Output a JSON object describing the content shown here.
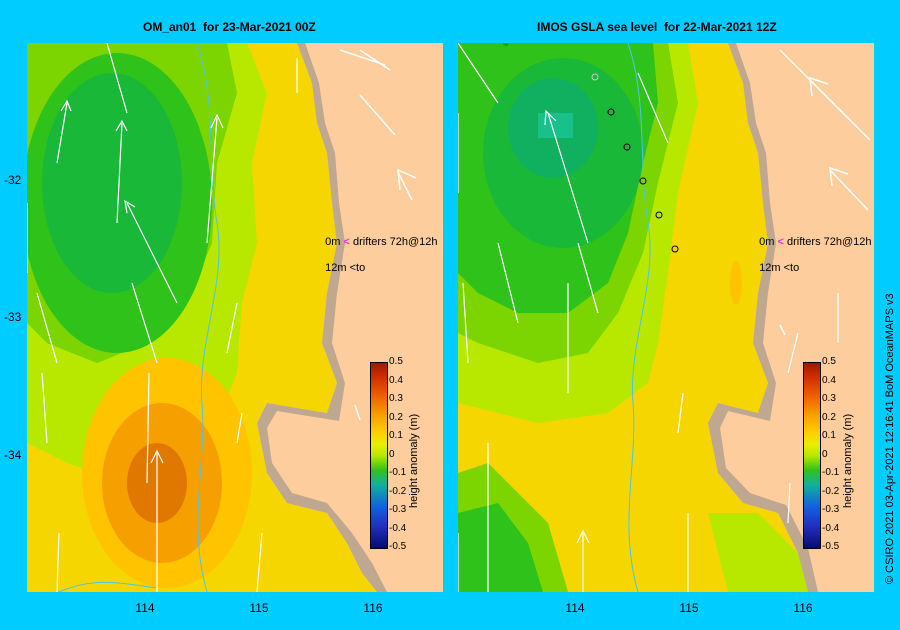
{
  "left_panel": {
    "title": "OM_an01  for 23-Mar-2021 00Z",
    "drifter_legend": {
      "line1_label": "0m",
      "line1_text": "drifters 72h@12h",
      "line2_label": "12m",
      "line2_text": "to"
    },
    "colorbar_title": "height anomaly (m)"
  },
  "right_panel": {
    "title": "IMOS GSLA sea level  for 22-Mar-2021 12Z",
    "drifter_legend": {
      "line1_label": "0m",
      "line1_text": "drifters 72h@12h",
      "line2_label": "12m",
      "line2_text": "to"
    },
    "colorbar_title": "height anomaly (m)"
  },
  "y_ticks": [
    "-32",
    "-33",
    "-34"
  ],
  "x_ticks": [
    "114",
    "115",
    "116"
  ],
  "colorbar_ticks": [
    "0.5",
    "0.4",
    "0.3",
    "0.2",
    "0.1",
    "0",
    "-0.1",
    "-0.2",
    "-0.3",
    "-0.4",
    "-0.5"
  ],
  "credit": "© CSIRO 2021   03-Apr-2021 12:16:41 BoM OceanMAPS v3",
  "colors": {
    "background": "#00ccff",
    "land": "#fdcd9e",
    "coast": "#c0a890",
    "drifter_arrow": "#ff33cc"
  }
}
